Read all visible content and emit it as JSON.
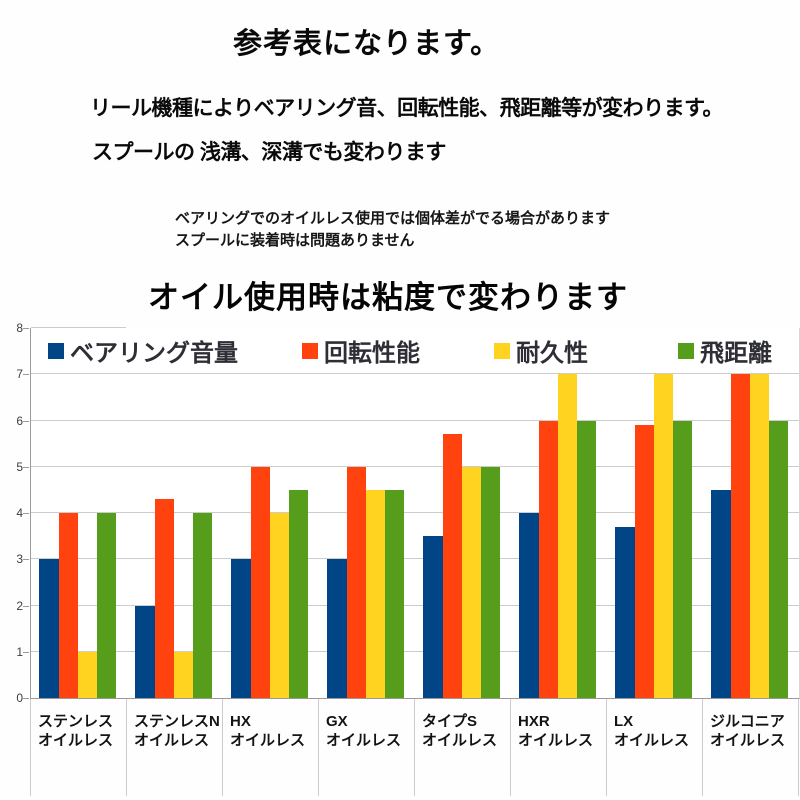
{
  "texts": {
    "title": "参考表になります。",
    "subtitle_line1": "リール機種によりベアリング音、回転性能、飛距離等が変わります。",
    "subtitle_line2": "スプールの 浅溝、深溝でも変わります",
    "note_line1": "ベアリングでのオイルレス使用では個体差がでる場合があります",
    "note_line2": "スプールに装着時は問題ありません",
    "oil_note": "オイル使用時は粘度で変わります"
  },
  "chart_data": {
    "type": "bar",
    "title": "",
    "xlabel": "",
    "ylabel": "",
    "ylim": [
      0,
      8
    ],
    "yticks": [
      0,
      1,
      2,
      3,
      4,
      5,
      6,
      7,
      8
    ],
    "grid": true,
    "legend_position": "top-inside",
    "categories": [
      {
        "line1": "ステンレス",
        "line2": "オイルレス"
      },
      {
        "line1": "ステンレスN",
        "line2": "オイルレス"
      },
      {
        "line1": "HX",
        "line2": "オイルレス"
      },
      {
        "line1": "GX",
        "line2": "オイルレス"
      },
      {
        "line1": "タイプS",
        "line2": "オイルレス"
      },
      {
        "line1": "HXR",
        "line2": "オイルレス"
      },
      {
        "line1": "LX",
        "line2": "オイルレス"
      },
      {
        "line1": "ジルコニア",
        "line2": "オイルレス"
      }
    ],
    "series": [
      {
        "name": "ベアリング音量",
        "color": "#004586",
        "values": [
          3,
          2,
          3,
          3,
          3.5,
          4,
          3.7,
          4.5
        ]
      },
      {
        "name": "回転性能",
        "color": "#FF420E",
        "values": [
          4,
          4.3,
          5,
          5,
          5.7,
          6,
          5.9,
          7
        ]
      },
      {
        "name": "耐久性",
        "color": "#FFD320",
        "values": [
          1,
          1,
          4,
          4.5,
          5,
          7,
          7,
          7
        ]
      },
      {
        "name": "飛距離",
        "color": "#579D1C",
        "values": [
          4,
          4,
          4.5,
          4.5,
          5,
          6,
          6,
          6
        ]
      }
    ]
  },
  "colors": {
    "axis": "#9a9a9a",
    "gridline": "#cccccc",
    "background": "#ffffff"
  }
}
